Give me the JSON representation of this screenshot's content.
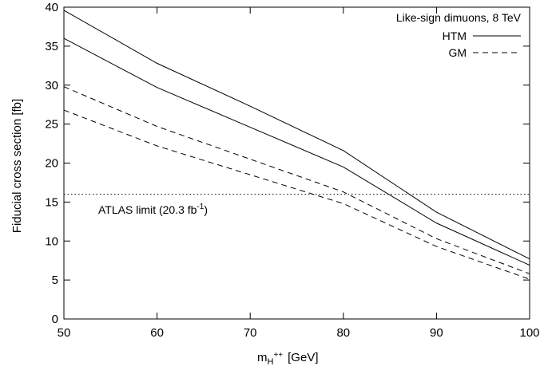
{
  "chart_data": {
    "type": "line",
    "xlabel_main": "m",
    "xlabel_sub": "H",
    "xlabel_sup": "++",
    "xlabel_unit": "[GeV]",
    "ylabel": "Fiducial cross section [fb]",
    "xlim": [
      50,
      100
    ],
    "ylim": [
      0,
      40
    ],
    "x_ticks": [
      50,
      60,
      70,
      80,
      90,
      100
    ],
    "y_ticks": [
      0,
      5,
      10,
      15,
      20,
      25,
      30,
      35,
      40
    ],
    "grid": false,
    "legend_title": "Like-sign dimuons, 8 TeV",
    "legend_position": "top-right",
    "series": [
      {
        "name": "HTM",
        "style": "solid",
        "x": [
          50,
          60,
          70,
          80,
          90,
          100
        ],
        "y": [
          39.6,
          32.8,
          27.3,
          21.6,
          13.7,
          7.7
        ]
      },
      {
        "name": "HTM",
        "style": "solid",
        "x": [
          50,
          60,
          70,
          80,
          90,
          100
        ],
        "y": [
          36.0,
          29.7,
          24.6,
          19.5,
          12.3,
          6.9
        ]
      },
      {
        "name": "GM",
        "style": "dashed",
        "x": [
          50,
          60,
          70,
          80,
          90,
          100
        ],
        "y": [
          29.8,
          24.7,
          20.5,
          16.3,
          10.3,
          5.8
        ]
      },
      {
        "name": "GM",
        "style": "dashed",
        "x": [
          50,
          60,
          70,
          80,
          90,
          100
        ],
        "y": [
          26.8,
          22.2,
          18.5,
          14.8,
          9.3,
          5.1
        ]
      }
    ],
    "limit": {
      "value": 16.0,
      "label_main": "ATLAS limit (20.3 fb",
      "label_sup": "-1",
      "label_end": ")"
    }
  }
}
